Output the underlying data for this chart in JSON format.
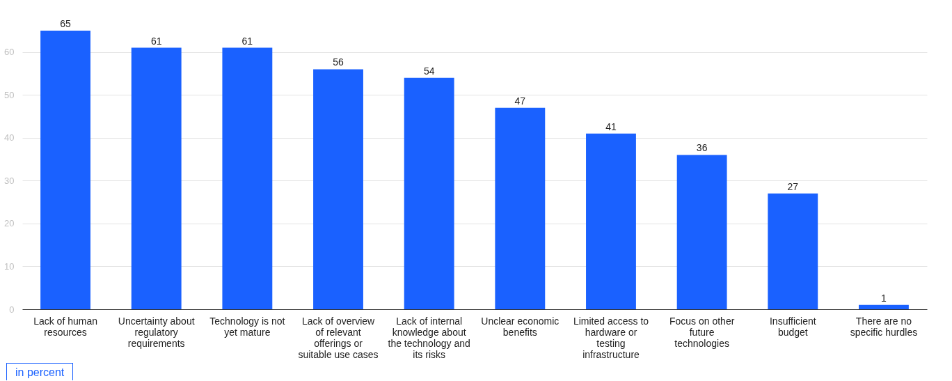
{
  "chart_data": {
    "type": "bar",
    "categories": [
      "Lack of human resources",
      "Uncertainty about regulatory requirements",
      "Technology is not yet mature",
      "Lack of overview of relevant offerings or suitable use cases",
      "Lack of internal knowledge about the technology and its risks",
      "Unclear economic benefits",
      "Limited access to hardware or testing infrastructure",
      "Focus on other future technologies",
      "Insufficient budget",
      "There are no specific hurdles"
    ],
    "values": [
      65,
      61,
      61,
      56,
      54,
      47,
      41,
      36,
      27,
      1
    ],
    "color": "#1a61ff",
    "ylim": [
      0,
      65
    ],
    "yticks": [
      0,
      10,
      20,
      30,
      40,
      50,
      60
    ],
    "grid": "y",
    "data_labels": true,
    "annotations": [
      "in percent"
    ]
  }
}
